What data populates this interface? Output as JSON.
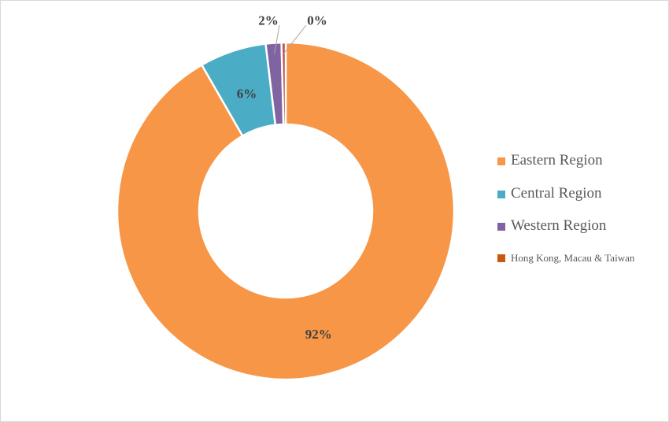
{
  "chart_data": {
    "type": "pie",
    "variant": "donut",
    "categories": [
      "Eastern Region",
      "Central Region",
      "Western Region",
      "Hong Kong, Macau & Taiwan"
    ],
    "values": [
      91.7,
      6.4,
      1.5,
      0.4
    ],
    "data_labels": [
      "92%",
      "6%",
      "2%",
      "0%"
    ],
    "colors": [
      "#f79646",
      "#4bacc6",
      "#8064a2",
      "#c0504d"
    ],
    "legend_position": "right",
    "title": ""
  },
  "legend": {
    "items": [
      {
        "label": "Eastern Region",
        "color": "#f79646"
      },
      {
        "label": "Central Region",
        "color": "#4bacc6"
      },
      {
        "label": "Western Region",
        "color": "#8064a2"
      },
      {
        "label": "Hong Kong, Macau & Taiwan",
        "color": "#c55a11"
      }
    ]
  }
}
